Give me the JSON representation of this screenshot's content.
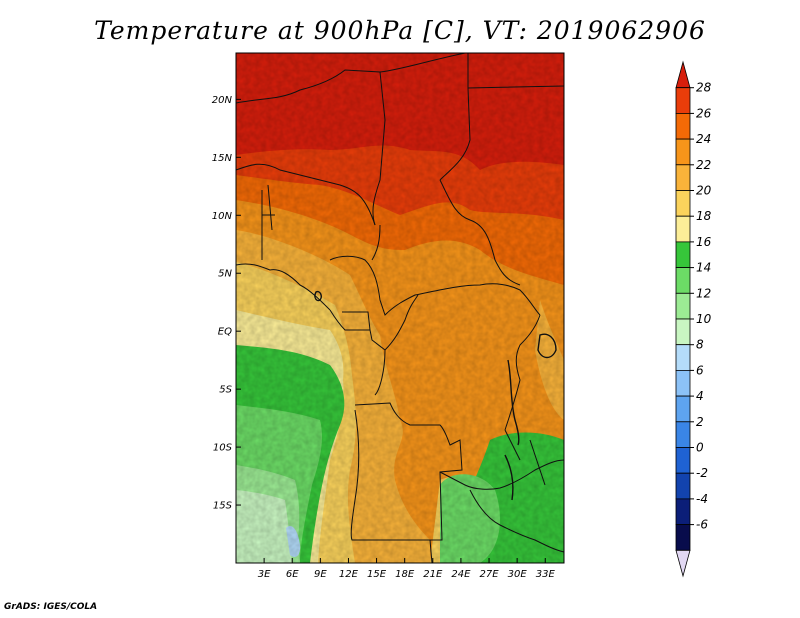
{
  "title": "Temperature at 900hPa [C], VT: 2019062906",
  "credit": "GrADS: IGES/COLA",
  "map": {
    "lon_range": [
      0,
      35
    ],
    "lat_range": [
      -20,
      24
    ],
    "lon_ticks": [
      3,
      6,
      9,
      12,
      15,
      18,
      21,
      24,
      27,
      30,
      33
    ],
    "lon_labels": [
      "3E",
      "6E",
      "9E",
      "12E",
      "15E",
      "18E",
      "21E",
      "24E",
      "27E",
      "30E",
      "33E"
    ],
    "lat_ticks": [
      20,
      15,
      10,
      5,
      0,
      -5,
      -10,
      -15
    ],
    "lat_labels": [
      "20N",
      "15N",
      "10N",
      "5N",
      "EQ",
      "5S",
      "10S",
      "15S"
    ]
  },
  "colorbar": {
    "levels": [
      "28",
      "26",
      "24",
      "22",
      "20",
      "18",
      "16",
      "14",
      "12",
      "10",
      "8",
      "6",
      "4",
      "2",
      "0",
      "-2",
      "-4",
      "-6"
    ],
    "colors": [
      "#d71e0c",
      "#ea3d0a",
      "#f46a06",
      "#f7951a",
      "#f9b33a",
      "#fbd35c",
      "#fcee98",
      "#36c63a",
      "#6cdc66",
      "#9ceb94",
      "#c9f6c2",
      "#b4dcfa",
      "#8cc2f7",
      "#5ea4f0",
      "#3a85e6",
      "#1f62d3",
      "#1243ae",
      "#0b1e78",
      "#080c4c",
      "#e2d8f3"
    ]
  }
}
